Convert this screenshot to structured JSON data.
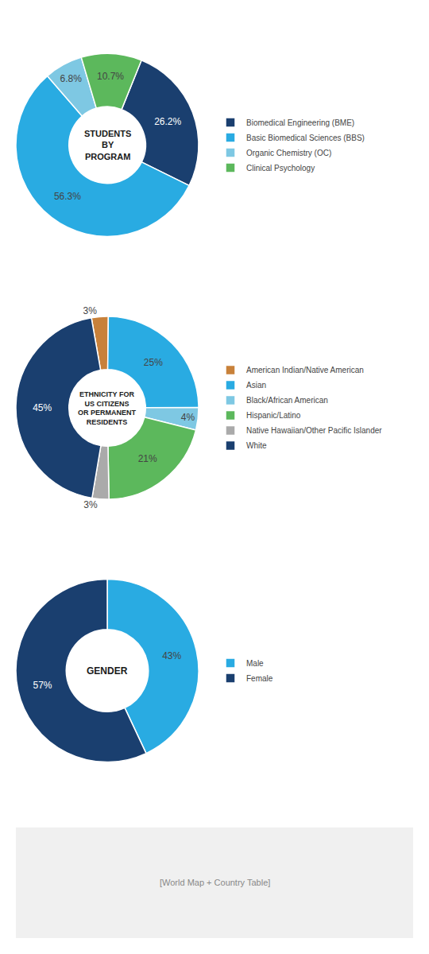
{
  "chart_data": [
    {
      "type": "pie",
      "title": "STUDENTS\nBY\nPROGRAM",
      "categories": [
        "Biomedical Engineering (BME)",
        "Basic Biomedical Sciences (BBS)",
        "Organic Chemistry (OC)",
        "Clinical Psychology"
      ],
      "values": [
        26.2,
        56.3,
        6.8,
        10.7
      ],
      "value_labels": [
        "26.2%",
        "56.3%",
        "6.8%",
        "10.7%"
      ],
      "colors": [
        "#1a3f6f",
        "#29abe2",
        "#7ec8e3",
        "#5cb85c"
      ],
      "data_labels": true
    },
    {
      "type": "pie",
      "title": "ETHNICITY FOR\nUS CITIZENS\nOR PERMANENT\nRESIDENTS",
      "categories": [
        "American Indian/Native American",
        "Asian",
        "Black/African American",
        "Hispanic/Latino",
        "Native Hawaiian/Other Pacific Islander",
        "White"
      ],
      "values": [
        3,
        25,
        4,
        21,
        3,
        45
      ],
      "value_labels": [
        "3%",
        "25%",
        "4%",
        "21%",
        "3%",
        "45%"
      ],
      "colors": [
        "#c8813a",
        "#29abe2",
        "#7ec8e3",
        "#5cb85c",
        "#aaaaaa",
        "#1a3f6f"
      ],
      "data_labels": true
    },
    {
      "type": "pie",
      "title": "GENDER",
      "categories": [
        "Male",
        "Female"
      ],
      "values": [
        43,
        57
      ],
      "value_labels": [
        "43%",
        "57%"
      ],
      "colors": [
        "#29abe2",
        "#1a3f6f"
      ],
      "data_labels": true,
      "annotations": [
        "[World Map + Country Table]"
      ]
    }
  ]
}
